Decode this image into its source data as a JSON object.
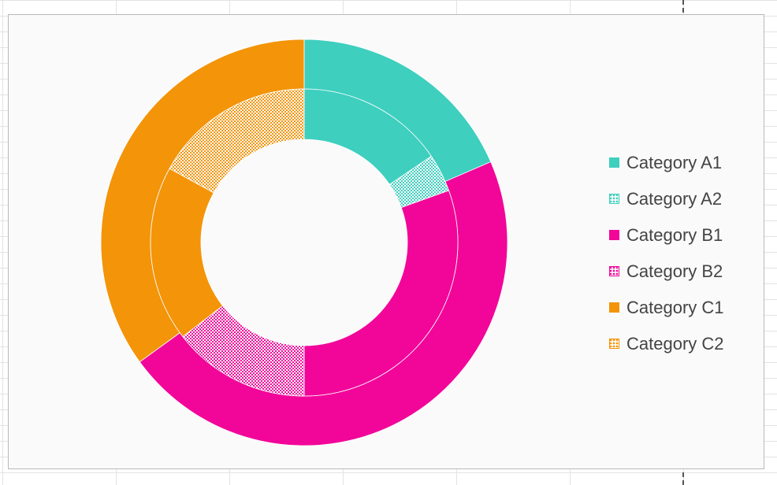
{
  "colors": {
    "teal": "#3ecfbe",
    "magenta": "#f2069a",
    "orange": "#f39409"
  },
  "chart_data": {
    "type": "pie",
    "variant": "double-donut",
    "title": "",
    "legend_position": "right",
    "outer_ring": [
      {
        "label": "Category A1",
        "value": 18.5,
        "color": "#3ecfbe"
      },
      {
        "label": "Category B1",
        "value": 46.5,
        "color": "#f2069a"
      },
      {
        "label": "Category C1",
        "value": 35.0,
        "color": "#f39409"
      }
    ],
    "inner_ring": [
      {
        "label": "Category A1",
        "value": 15.5,
        "color": "#3ecfbe",
        "pattern": false
      },
      {
        "label": "Category A2",
        "value": 4.0,
        "color": "#3ecfbe",
        "pattern": true
      },
      {
        "label": "Category B1",
        "value": 30.5,
        "color": "#f2069a",
        "pattern": false
      },
      {
        "label": "Category B2",
        "value": 14.5,
        "color": "#f2069a",
        "pattern": true
      },
      {
        "label": "Category C1",
        "value": 18.5,
        "color": "#f39409",
        "pattern": false
      },
      {
        "label": "Category C2",
        "value": 17.0,
        "color": "#f39409",
        "pattern": true
      }
    ],
    "legend": [
      {
        "label": "Category A1",
        "color": "#3ecfbe",
        "pattern": false
      },
      {
        "label": "Category A2",
        "color": "#3ecfbe",
        "pattern": true
      },
      {
        "label": "Category B1",
        "color": "#f2069a",
        "pattern": false
      },
      {
        "label": "Category B2",
        "color": "#f2069a",
        "pattern": true
      },
      {
        "label": "Category C1",
        "color": "#f39409",
        "pattern": false
      },
      {
        "label": "Category C2",
        "color": "#f39409",
        "pattern": true
      }
    ]
  }
}
